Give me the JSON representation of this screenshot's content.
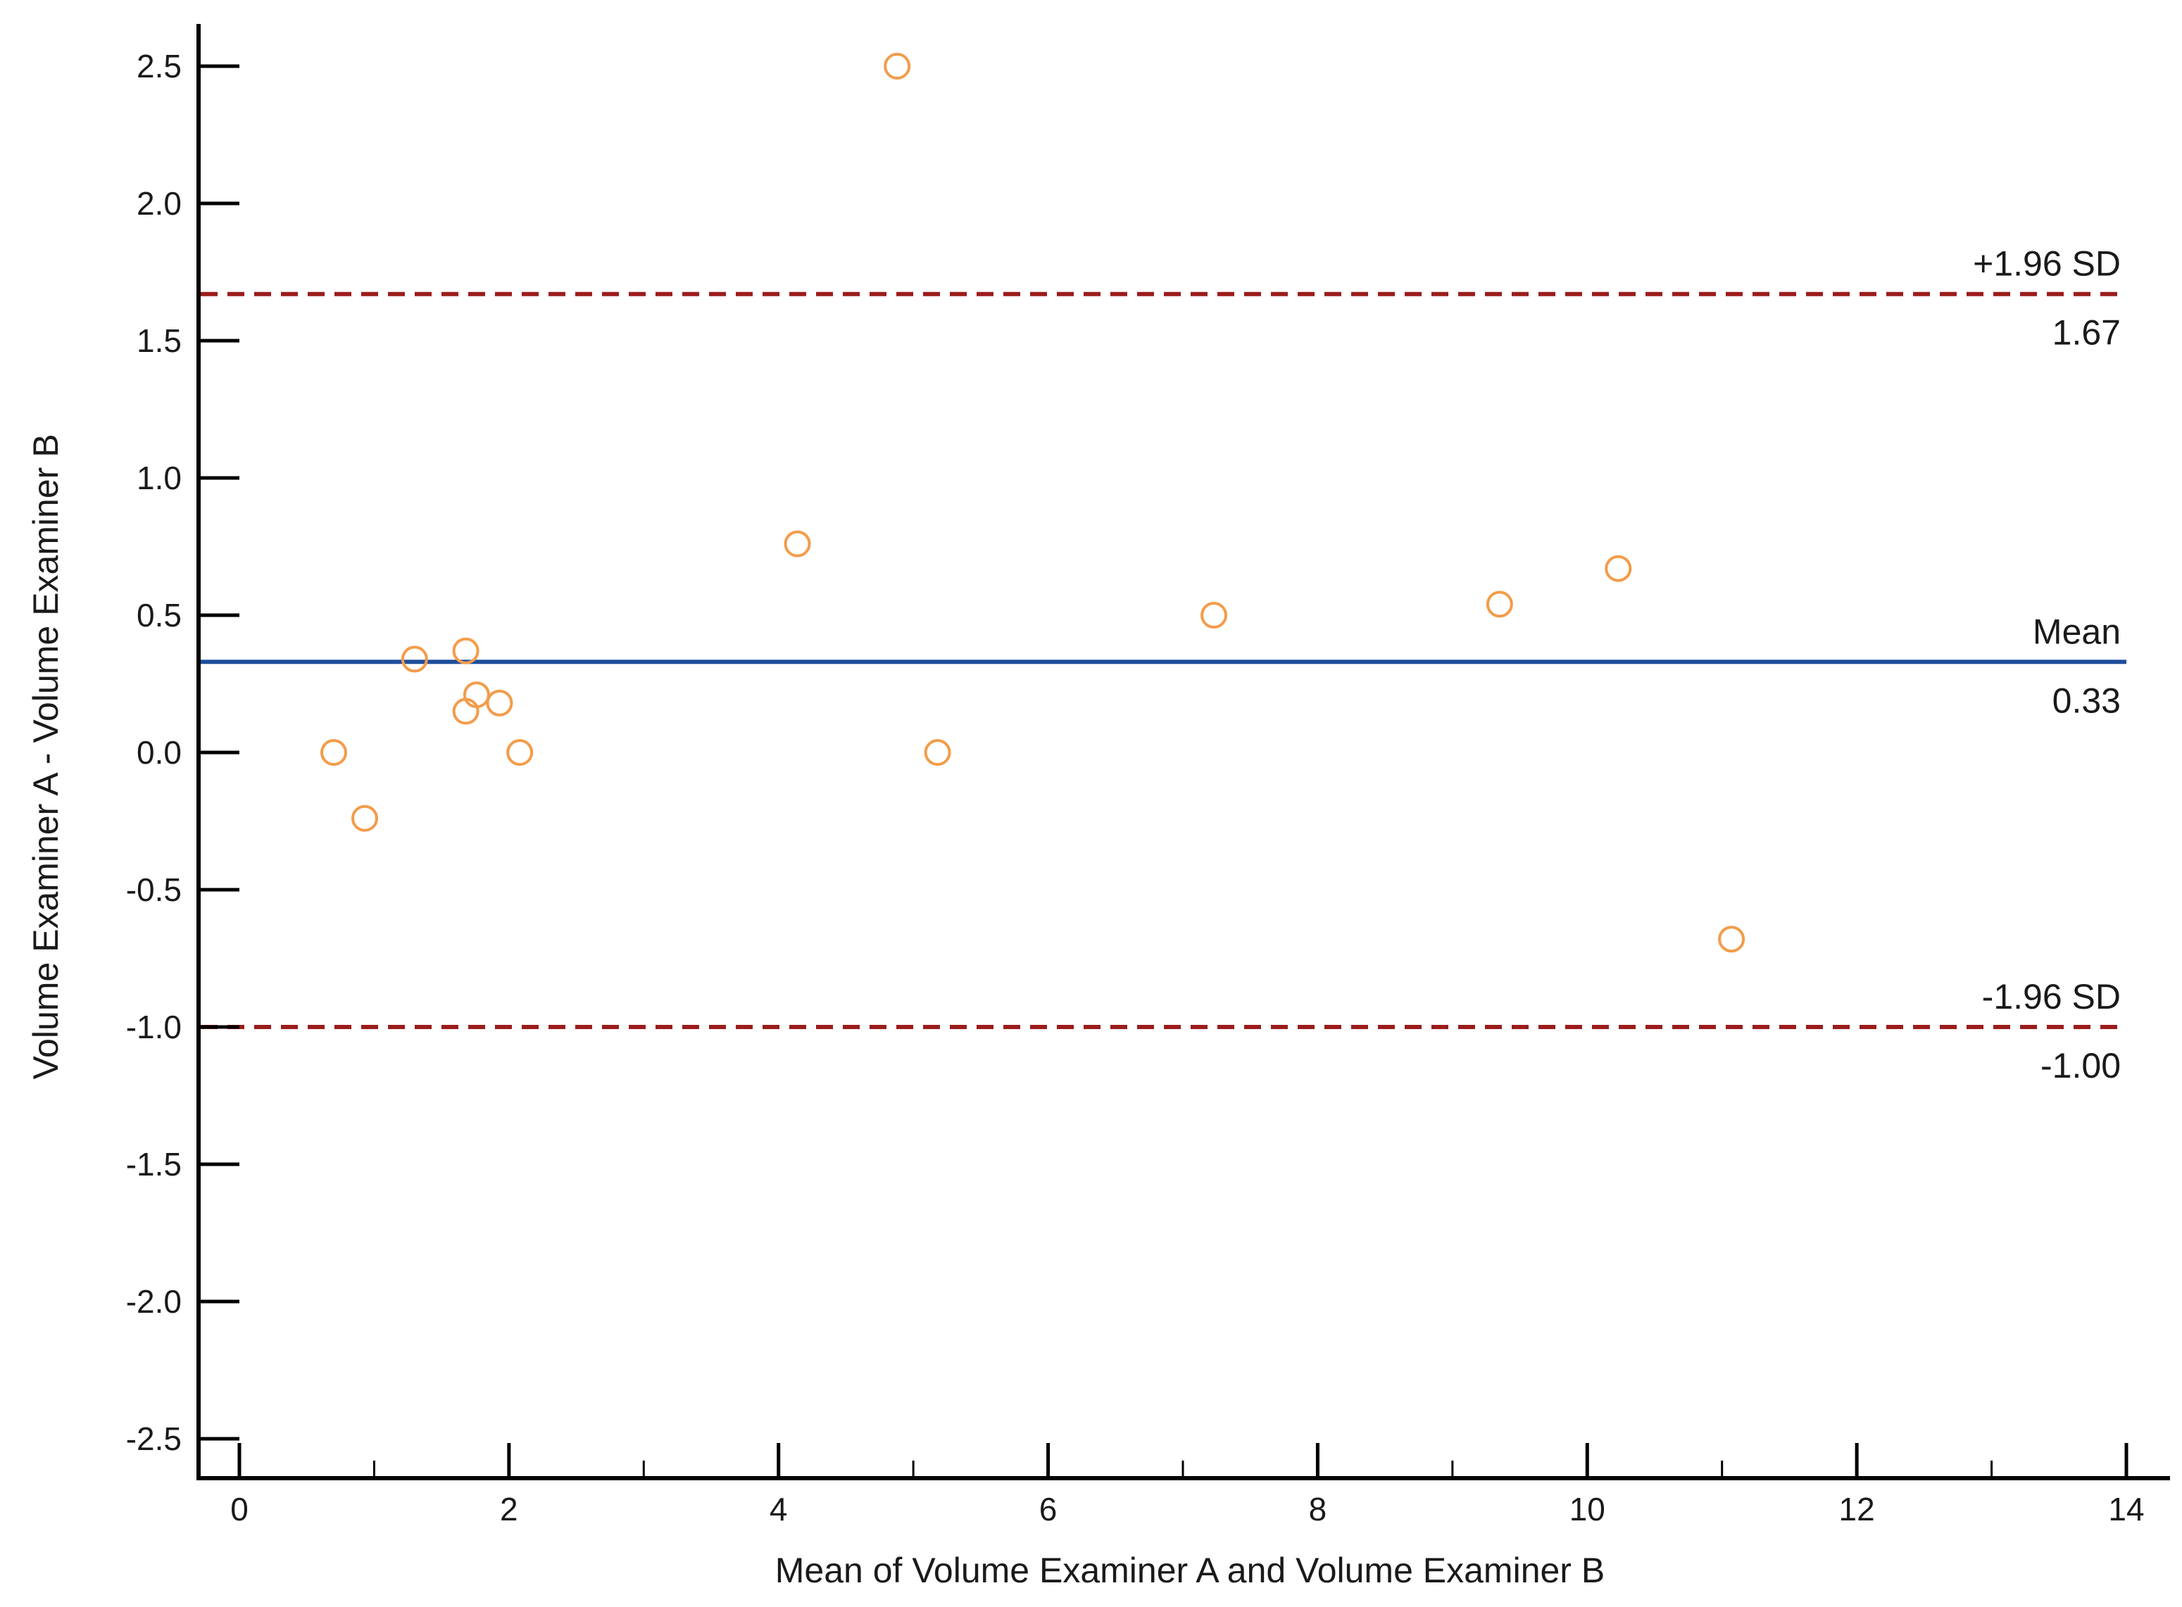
{
  "chart_data": {
    "type": "scatter",
    "title": "",
    "xlabel": "Mean of Volume Examiner A and Volume Examiner B",
    "ylabel": "Volume Examiner A - Volume Examiner B",
    "xlim": [
      0,
      14
    ],
    "ylim": [
      -2.5,
      2.5
    ],
    "x_ticks": [
      0,
      2,
      4,
      6,
      8,
      10,
      12,
      14
    ],
    "x_tick_labels": [
      "0",
      "2",
      "4",
      "6",
      "8",
      "10",
      "12",
      "14"
    ],
    "x_minor_ticks": [
      1,
      3,
      5,
      7,
      9,
      11,
      13
    ],
    "y_ticks": [
      2.5,
      2.0,
      1.5,
      1.0,
      0.5,
      0.0,
      -0.5,
      -1.0,
      -1.5,
      -2.0,
      -2.5
    ],
    "y_tick_labels": [
      "2.5",
      "2.0",
      "1.5",
      "1.0",
      "0.5",
      "0.0",
      "-0.5",
      "-1.0",
      "-1.5",
      "-2.0",
      "-2.5"
    ],
    "grid": false,
    "point_color": "#f39c4a",
    "points": [
      {
        "x": 0.7,
        "y": 0.0
      },
      {
        "x": 0.93,
        "y": -0.24
      },
      {
        "x": 1.3,
        "y": 0.34
      },
      {
        "x": 1.68,
        "y": 0.37
      },
      {
        "x": 1.68,
        "y": 0.15
      },
      {
        "x": 1.76,
        "y": 0.21
      },
      {
        "x": 1.93,
        "y": 0.18
      },
      {
        "x": 2.08,
        "y": 0.0
      },
      {
        "x": 4.14,
        "y": 0.76
      },
      {
        "x": 4.88,
        "y": 2.5
      },
      {
        "x": 5.18,
        "y": 0.0
      },
      {
        "x": 7.23,
        "y": 0.5
      },
      {
        "x": 9.35,
        "y": 0.54
      },
      {
        "x": 10.23,
        "y": 0.67
      },
      {
        "x": 11.07,
        "y": -0.68
      }
    ],
    "reference_lines": [
      {
        "name": "+1.96 SD",
        "value_label": "1.67",
        "y": 1.67,
        "color": "#9b1c1c",
        "style": "dashed"
      },
      {
        "name": "Mean",
        "value_label": "0.33",
        "y": 0.33,
        "color": "#1f4e9c",
        "style": "solid"
      },
      {
        "name": "-1.96 SD",
        "value_label": "-1.00",
        "y": -1.0,
        "color": "#9b1c1c",
        "style": "dashed"
      }
    ]
  }
}
